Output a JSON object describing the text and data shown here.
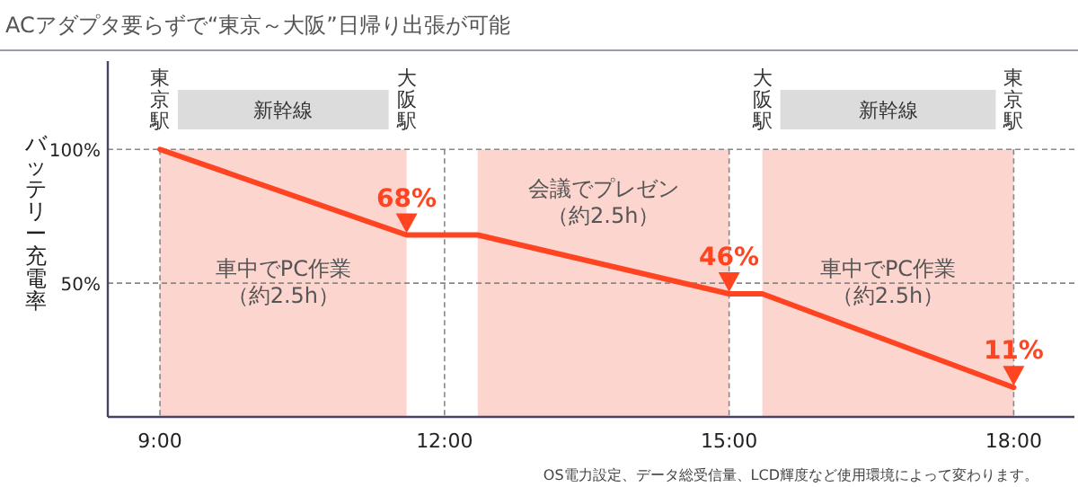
{
  "chart_data": {
    "type": "line",
    "title": "ACアダプタ要らずで“東京～大阪”日帰り出張が可能",
    "ylabel": "バッテリー充電率",
    "series": [
      {
        "color": "#ff4422",
        "x": [
          9,
          11.6,
          12.35,
          15.0,
          15.35,
          18.0
        ],
        "values": [
          100,
          68,
          68,
          46,
          46,
          11
        ],
        "value_labels": [
          null,
          "68%",
          null,
          "46%",
          null,
          "11%"
        ]
      }
    ],
    "xlim": [
      8.45,
      18.64
    ],
    "xticks": [
      {
        "value": 9,
        "label": "9:00"
      },
      {
        "value": 12,
        "label": "12:00"
      },
      {
        "value": 15,
        "label": "15:00"
      },
      {
        "value": 18,
        "label": "18:00"
      }
    ],
    "ylim": [
      0,
      133
    ],
    "yticks": [
      {
        "value": 50,
        "label": "50%"
      },
      {
        "value": 100,
        "label": "100%"
      }
    ],
    "grid": true,
    "bands": [
      {
        "axis": "x",
        "from": 9,
        "to": 11.6,
        "label": "車中でPC作業（約2.5h）",
        "color": "#fdd5cf"
      },
      {
        "axis": "x",
        "from": 12.35,
        "to": 15.0,
        "label": "会議でプレゼン（約2.5h）",
        "color": "#fdd5cf"
      },
      {
        "axis": "x",
        "from": 15.35,
        "to": 18.0,
        "label": "車中でPC作業（約2.5h）",
        "color": "#fdd5cf"
      }
    ],
    "annotations": [
      "東京駅",
      "新幹線",
      "大阪駅",
      "大阪駅",
      "新幹線",
      "東京駅",
      "OS電力設定、データ総受信量、LCD輝度など使用環境によって変わります。"
    ]
  }
}
